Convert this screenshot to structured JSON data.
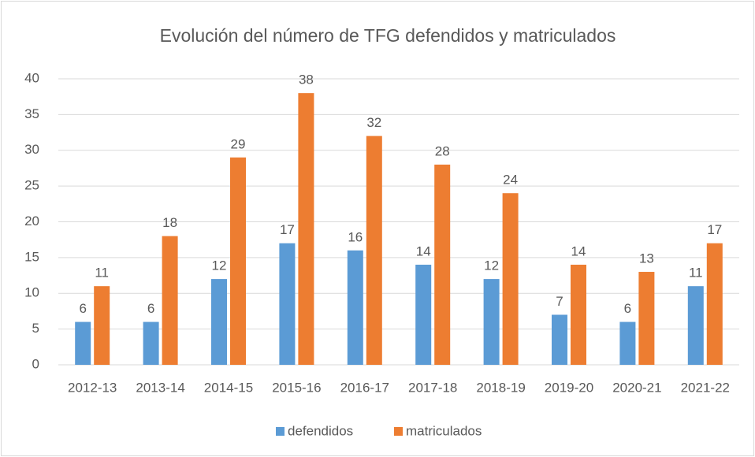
{
  "chart_data": {
    "type": "bar",
    "title": "Evolución del número de TFG defendidos y matriculados",
    "categories": [
      "2012-13",
      "2013-14",
      "2014-15",
      "2015-16",
      "2016-17",
      "2017-18",
      "2018-19",
      "2019-20",
      "2020-21",
      "2021-22"
    ],
    "series": [
      {
        "name": "defendidos",
        "color": "#5b9bd5",
        "values": [
          6,
          6,
          12,
          17,
          16,
          14,
          12,
          7,
          6,
          11
        ]
      },
      {
        "name": "matriculados",
        "color": "#ed7d31",
        "values": [
          11,
          18,
          29,
          38,
          32,
          28,
          24,
          14,
          13,
          17
        ]
      }
    ],
    "ylim": [
      0,
      40
    ],
    "yticks": [
      0,
      5,
      10,
      15,
      20,
      25,
      30,
      35,
      40
    ],
    "grid": true,
    "legend": "bottom",
    "data_labels": true
  }
}
